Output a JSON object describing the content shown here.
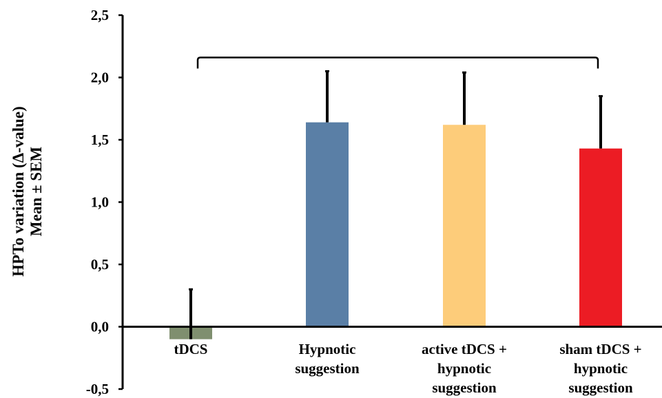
{
  "chart_data": {
    "type": "bar",
    "title": "",
    "ylabel": [
      "HPTo variation  (Δ-value)",
      "Mean ± SEM"
    ],
    "xlabel": "",
    "ylim": [
      -0.5,
      2.5
    ],
    "yticks": [
      -0.5,
      0.0,
      0.5,
      1.0,
      1.5,
      2.0,
      2.5
    ],
    "ytick_labels": [
      "-0,5",
      "0,0",
      "0,5",
      "1,0",
      "1,5",
      "2,0",
      "2,5"
    ],
    "categories": [
      [
        "tDCS"
      ],
      [
        "Hypnotic",
        "suggestion"
      ],
      [
        "active tDCS +",
        "hypnotic",
        "suggestion"
      ],
      [
        "sham tDCS +",
        "hypnotic",
        "suggestion"
      ]
    ],
    "values": [
      -0.1,
      1.64,
      1.62,
      1.43
    ],
    "sem": [
      0.4,
      0.41,
      0.42,
      0.42
    ],
    "colors": [
      "#7f8f6f",
      "#5a7fa6",
      "#fdcc7a",
      "#ec1c24"
    ],
    "grid": false,
    "legend": "none",
    "annotation": {
      "type": "significance-bracket",
      "from_category": 0,
      "to_category": 3,
      "y": 2.16
    }
  }
}
